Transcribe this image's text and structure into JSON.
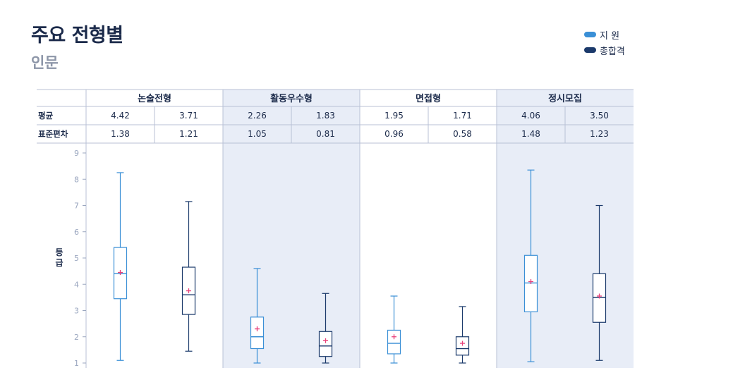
{
  "header": {
    "title": "주요 전형별",
    "subtitle": "인문"
  },
  "legend": [
    {
      "label": "지  원",
      "color": "#3a8fd6"
    },
    {
      "label": "총합격",
      "color": "#1b3a6b"
    }
  ],
  "table": {
    "row_labels": [
      "평균",
      "표준편차"
    ]
  },
  "chart_data": {
    "type": "boxplot",
    "ylabel": "등급",
    "ylim": [
      0.8,
      9.2
    ],
    "yticks": [
      1,
      2,
      3,
      4,
      5,
      6,
      7,
      8,
      9
    ],
    "groups": [
      "논술전형",
      "활동우수형",
      "면접형",
      "정시모집"
    ],
    "group_shaded": [
      false,
      true,
      false,
      true
    ],
    "series": [
      {
        "name": "지  원",
        "color": "#3a8fd6"
      },
      {
        "name": "총합격",
        "color": "#1b3a6b"
      }
    ],
    "boxes": [
      {
        "group": "논술전형",
        "series": "지  원",
        "mean": "4.42",
        "sd": "1.38",
        "min": 1.1,
        "q1": 3.45,
        "median": 4.4,
        "q3": 5.4,
        "max": 8.25,
        "mean_marker": 4.45
      },
      {
        "group": "논술전형",
        "series": "총합격",
        "mean": "3.71",
        "sd": "1.21",
        "min": 1.45,
        "q1": 2.85,
        "median": 3.6,
        "q3": 4.65,
        "max": 7.15,
        "mean_marker": 3.75
      },
      {
        "group": "활동우수형",
        "series": "지  원",
        "mean": "2.26",
        "sd": "1.05",
        "min": 1.0,
        "q1": 1.55,
        "median": 2.0,
        "q3": 2.75,
        "max": 4.6,
        "mean_marker": 2.3
      },
      {
        "group": "활동우수형",
        "series": "총합격",
        "mean": "1.83",
        "sd": "0.81",
        "min": 1.0,
        "q1": 1.25,
        "median": 1.65,
        "q3": 2.2,
        "max": 3.65,
        "mean_marker": 1.85
      },
      {
        "group": "면접형",
        "series": "지  원",
        "mean": "1.95",
        "sd": "0.96",
        "min": 1.0,
        "q1": 1.35,
        "median": 1.75,
        "q3": 2.25,
        "max": 3.55,
        "mean_marker": 2.0
      },
      {
        "group": "면접형",
        "series": "총합격",
        "mean": "1.71",
        "sd": "0.58",
        "min": 1.0,
        "q1": 1.3,
        "median": 1.55,
        "q3": 2.0,
        "max": 3.15,
        "mean_marker": 1.75
      },
      {
        "group": "정시모집",
        "series": "지  원",
        "mean": "4.06",
        "sd": "1.48",
        "min": 1.05,
        "q1": 2.95,
        "median": 4.05,
        "q3": 5.1,
        "max": 8.35,
        "mean_marker": 4.1
      },
      {
        "group": "정시모집",
        "series": "총합격",
        "mean": "3.50",
        "sd": "1.23",
        "min": 1.1,
        "q1": 2.55,
        "median": 3.5,
        "q3": 4.4,
        "max": 7.0,
        "mean_marker": 3.55
      }
    ]
  }
}
